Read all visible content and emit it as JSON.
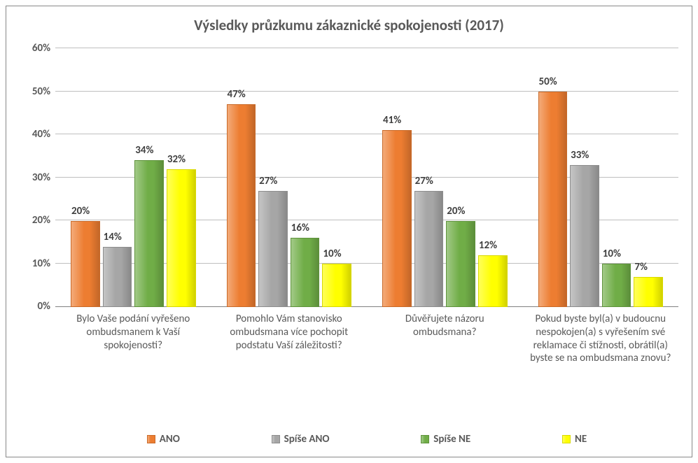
{
  "chart": {
    "type": "bar",
    "title": "Výsledky průzkumu zákaznické spokojenosti (2017)",
    "title_fontsize": 21,
    "title_color": "#595959",
    "background_color": "#ffffff",
    "border_color": "#888888",
    "grid_color": "#bfbfbf",
    "axis_color": "#808080",
    "label_color": "#595959",
    "data_label_color": "#404040",
    "label_fontsize": 15,
    "yaxis": {
      "min": 0,
      "max": 60,
      "step": 10,
      "format": "percent",
      "ticks": [
        "0%",
        "10%",
        "20%",
        "30%",
        "40%",
        "50%",
        "60%"
      ]
    },
    "series": [
      {
        "name": "ANO",
        "color": "#ed7d31"
      },
      {
        "name": "Spíše ANO",
        "color": "#a6a6a6"
      },
      {
        "name": "Spíše NE",
        "color": "#70ad47"
      },
      {
        "name": "NE",
        "color": "#ffff00"
      }
    ],
    "categories": [
      {
        "label": "Bylo Vaše podání vyřešeno ombudsmanem k Vaší spokojenosti?",
        "values": [
          20,
          14,
          34,
          32
        ],
        "value_labels": [
          "20%",
          "14%",
          "34%",
          "32%"
        ]
      },
      {
        "label": "Pomohlo Vám stanovisko ombudsmana více pochopit podstatu Vaší záležitosti?",
        "values": [
          47,
          27,
          16,
          10
        ],
        "value_labels": [
          "47%",
          "27%",
          "16%",
          "10%"
        ]
      },
      {
        "label": "Důvěřujete názoru ombudsmana?",
        "values": [
          41,
          27,
          20,
          12
        ],
        "value_labels": [
          "41%",
          "27%",
          "20%",
          "12%"
        ]
      },
      {
        "label": "Pokud byste byl(a) v budoucnu nespokojen(a) s vyřešením své reklamace či stížnosti, obrátil(a) byste se na ombudsmana znovu?",
        "values": [
          50,
          33,
          10,
          7
        ],
        "value_labels": [
          "50%",
          "33%",
          "10%",
          "7%"
        ]
      }
    ]
  }
}
